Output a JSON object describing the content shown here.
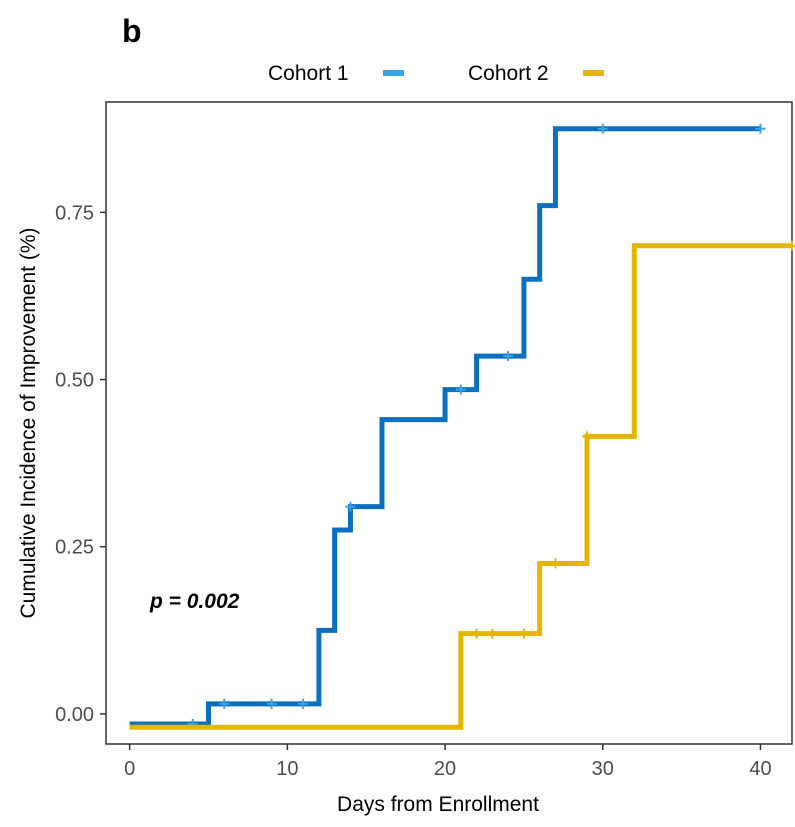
{
  "panel_label": "b",
  "colors": {
    "cohort1": "#0a6fbf",
    "cohort1_censor": "#39a3e6",
    "cohort2": "#e5b503",
    "axis": "#333333"
  },
  "chart_data": {
    "type": "line",
    "subtype": "step",
    "xlabel": "Days from Enrollment",
    "ylabel": "Cumulative Incidence of Improvement (%)",
    "xlim": [
      -1.5,
      42
    ],
    "ylim": [
      -0.045,
      0.915
    ],
    "xticks": [
      0,
      10,
      20,
      30,
      40
    ],
    "xtick_labels": [
      "0",
      "10",
      "20",
      "30",
      "40"
    ],
    "yticks": [
      0,
      0.25,
      0.5,
      0.75
    ],
    "ytick_labels": [
      "0.00",
      "0.25",
      "0.50",
      "0.75"
    ],
    "grid": false,
    "legend_position": "top",
    "annotation": "p = 0.002",
    "series": [
      {
        "name": "Cohort 1",
        "steps": [
          [
            0,
            -0.015
          ],
          [
            5,
            0.015
          ],
          [
            12,
            0.125
          ],
          [
            13,
            0.275
          ],
          [
            14,
            0.31
          ],
          [
            16,
            0.44
          ],
          [
            20,
            0.485
          ],
          [
            22,
            0.535
          ],
          [
            25,
            0.65
          ],
          [
            26,
            0.76
          ],
          [
            27,
            0.875
          ]
        ],
        "x_end": 40,
        "censor_x": [
          4,
          6,
          9,
          11,
          14,
          21,
          24,
          30,
          40
        ]
      },
      {
        "name": "Cohort 2",
        "steps": [
          [
            0,
            -0.02
          ],
          [
            21,
            0.12
          ],
          [
            26,
            0.225
          ],
          [
            29,
            0.415
          ],
          [
            32,
            0.7
          ]
        ],
        "x_end": 42,
        "censor_x": [
          22,
          23,
          25,
          27,
          29,
          42
        ]
      }
    ]
  }
}
